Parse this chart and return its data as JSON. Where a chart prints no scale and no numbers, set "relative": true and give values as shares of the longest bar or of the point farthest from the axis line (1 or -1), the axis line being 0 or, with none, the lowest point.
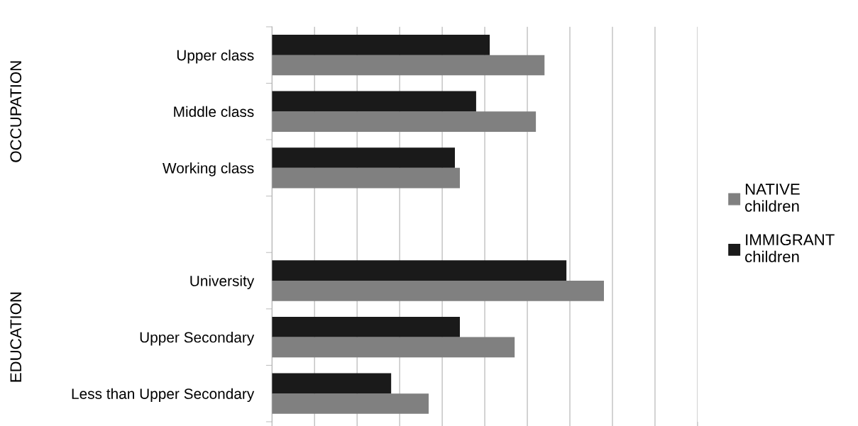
{
  "chart_data": {
    "type": "bar",
    "orientation": "horizontal",
    "relative": true,
    "grid": "x",
    "legend": "right",
    "categories": [
      "Upper class",
      "Middle class",
      "Working class",
      null,
      "University",
      "Upper Secondary",
      "Less than Upper Secondary"
    ],
    "series": [
      {
        "name": "NATIVE\nchildren",
        "color": "#808080",
        "values": [
          0.821,
          0.795,
          0.566,
          null,
          1,
          0.731,
          0.472
        ]
      },
      {
        "name": "IMMIGRANT\nchildren",
        "color": "#1a1a1a",
        "values": [
          0.656,
          0.615,
          0.551,
          null,
          0.887,
          0.566,
          0.359
        ]
      }
    ],
    "annotations": [
      "OCCUPATION",
      "EDUCATION"
    ]
  }
}
